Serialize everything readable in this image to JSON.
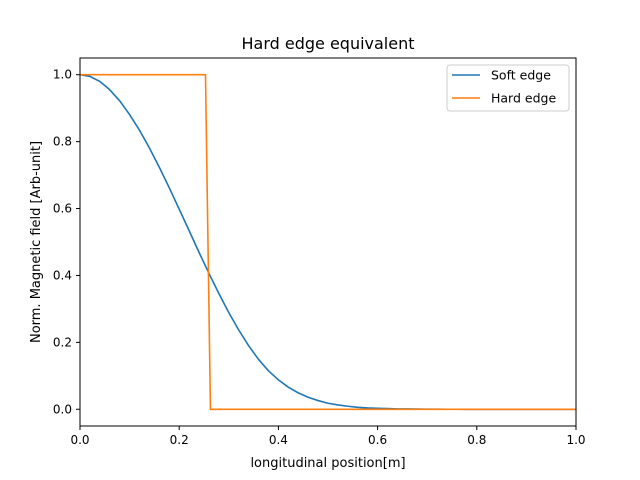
{
  "chart_data": {
    "type": "line",
    "title": "Hard edge equivalent",
    "xlabel": "longitudinal position[m]",
    "ylabel": "Norm. Magnetic field [Arb-unit]",
    "xlim": [
      0.0,
      1.0
    ],
    "ylim": [
      -0.05,
      1.05
    ],
    "xticks": [
      "0.0",
      "0.2",
      "0.4",
      "0.6",
      "0.8",
      "1.0"
    ],
    "yticks": [
      "0.0",
      "0.2",
      "0.4",
      "0.6",
      "0.8",
      "1.0"
    ],
    "grid": false,
    "legend_position": "top-right",
    "series": [
      {
        "name": "Soft edge",
        "color": "#1f77b4",
        "x": [
          0.0,
          0.02,
          0.04,
          0.06,
          0.08,
          0.1,
          0.12,
          0.14,
          0.16,
          0.18,
          0.2,
          0.22,
          0.24,
          0.26,
          0.28,
          0.3,
          0.32,
          0.34,
          0.36,
          0.38,
          0.4,
          0.42,
          0.44,
          0.46,
          0.48,
          0.5,
          0.52,
          0.54,
          0.56,
          0.58,
          0.6,
          0.62,
          0.64,
          0.66,
          0.68,
          0.7,
          0.72,
          0.74,
          0.76,
          0.78,
          0.8,
          0.82,
          0.84,
          0.86,
          0.88,
          0.9,
          0.92,
          0.94,
          0.96,
          0.98,
          1.0
        ],
        "y": [
          1.0,
          0.995,
          0.98,
          0.955,
          0.922,
          0.881,
          0.834,
          0.781,
          0.723,
          0.662,
          0.598,
          0.534,
          0.469,
          0.406,
          0.346,
          0.289,
          0.237,
          0.19,
          0.149,
          0.115,
          0.088,
          0.066,
          0.049,
          0.036,
          0.026,
          0.018,
          0.013,
          0.009,
          0.006,
          0.004,
          0.003,
          0.002,
          0.001,
          0.001,
          0.0005,
          0.0003,
          0.0002,
          0.0001,
          0.0001,
          0.0,
          0.0,
          0.0,
          0.0,
          0.0,
          0.0,
          0.0,
          0.0,
          0.0,
          0.0,
          0.0,
          0.0
        ]
      },
      {
        "name": "Hard edge",
        "color": "#ff7f0e",
        "x": [
          0.0,
          0.253,
          0.263,
          1.0
        ],
        "y": [
          1.0,
          1.0,
          0.0,
          0.0
        ]
      }
    ]
  }
}
